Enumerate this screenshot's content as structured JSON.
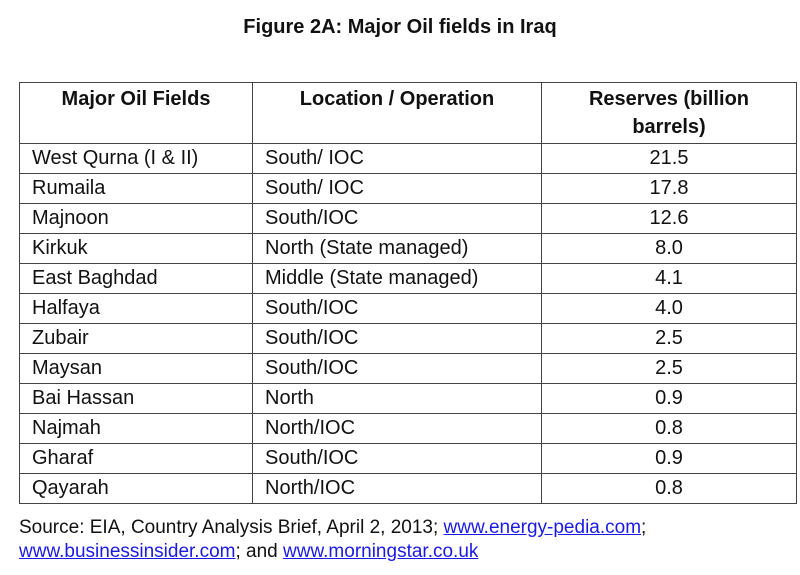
{
  "title": "Figure 2A: Major Oil fields in Iraq",
  "table": {
    "headers": [
      "Major Oil Fields",
      "Location / Operation",
      "Reserves (billion barrels)"
    ],
    "rows": [
      [
        "West Qurna (I & II)",
        "South/ IOC",
        "21.5"
      ],
      [
        "Rumaila",
        "South/ IOC",
        "17.8"
      ],
      [
        "Majnoon",
        "South/IOC",
        "12.6"
      ],
      [
        "Kirkuk",
        "North (State managed)",
        "8.0"
      ],
      [
        "East Baghdad",
        "Middle (State managed)",
        "4.1"
      ],
      [
        "Halfaya",
        "South/IOC",
        "4.0"
      ],
      [
        "Zubair",
        "South/IOC",
        "2.5"
      ],
      [
        "Maysan",
        "South/IOC",
        "2.5"
      ],
      [
        "Bai Hassan",
        "North",
        "0.9"
      ],
      [
        "Najmah",
        "North/IOC",
        "0.8"
      ],
      [
        "Gharaf",
        "South/IOC",
        "0.9"
      ],
      [
        "Qayarah",
        "North/IOC",
        "0.8"
      ]
    ]
  },
  "source": {
    "prefix": "Source: EIA, Country Analysis Brief, April 2, 2013; ",
    "link1": "www.energy-pedia.com",
    "sep1": ";",
    "link2": "www.businessinsider.com",
    "sep2": "; and ",
    "link3": "www.morningstar.co.uk"
  },
  "colors": {
    "link": "#1a1ae6",
    "border": "#444444",
    "text": "#111111"
  }
}
